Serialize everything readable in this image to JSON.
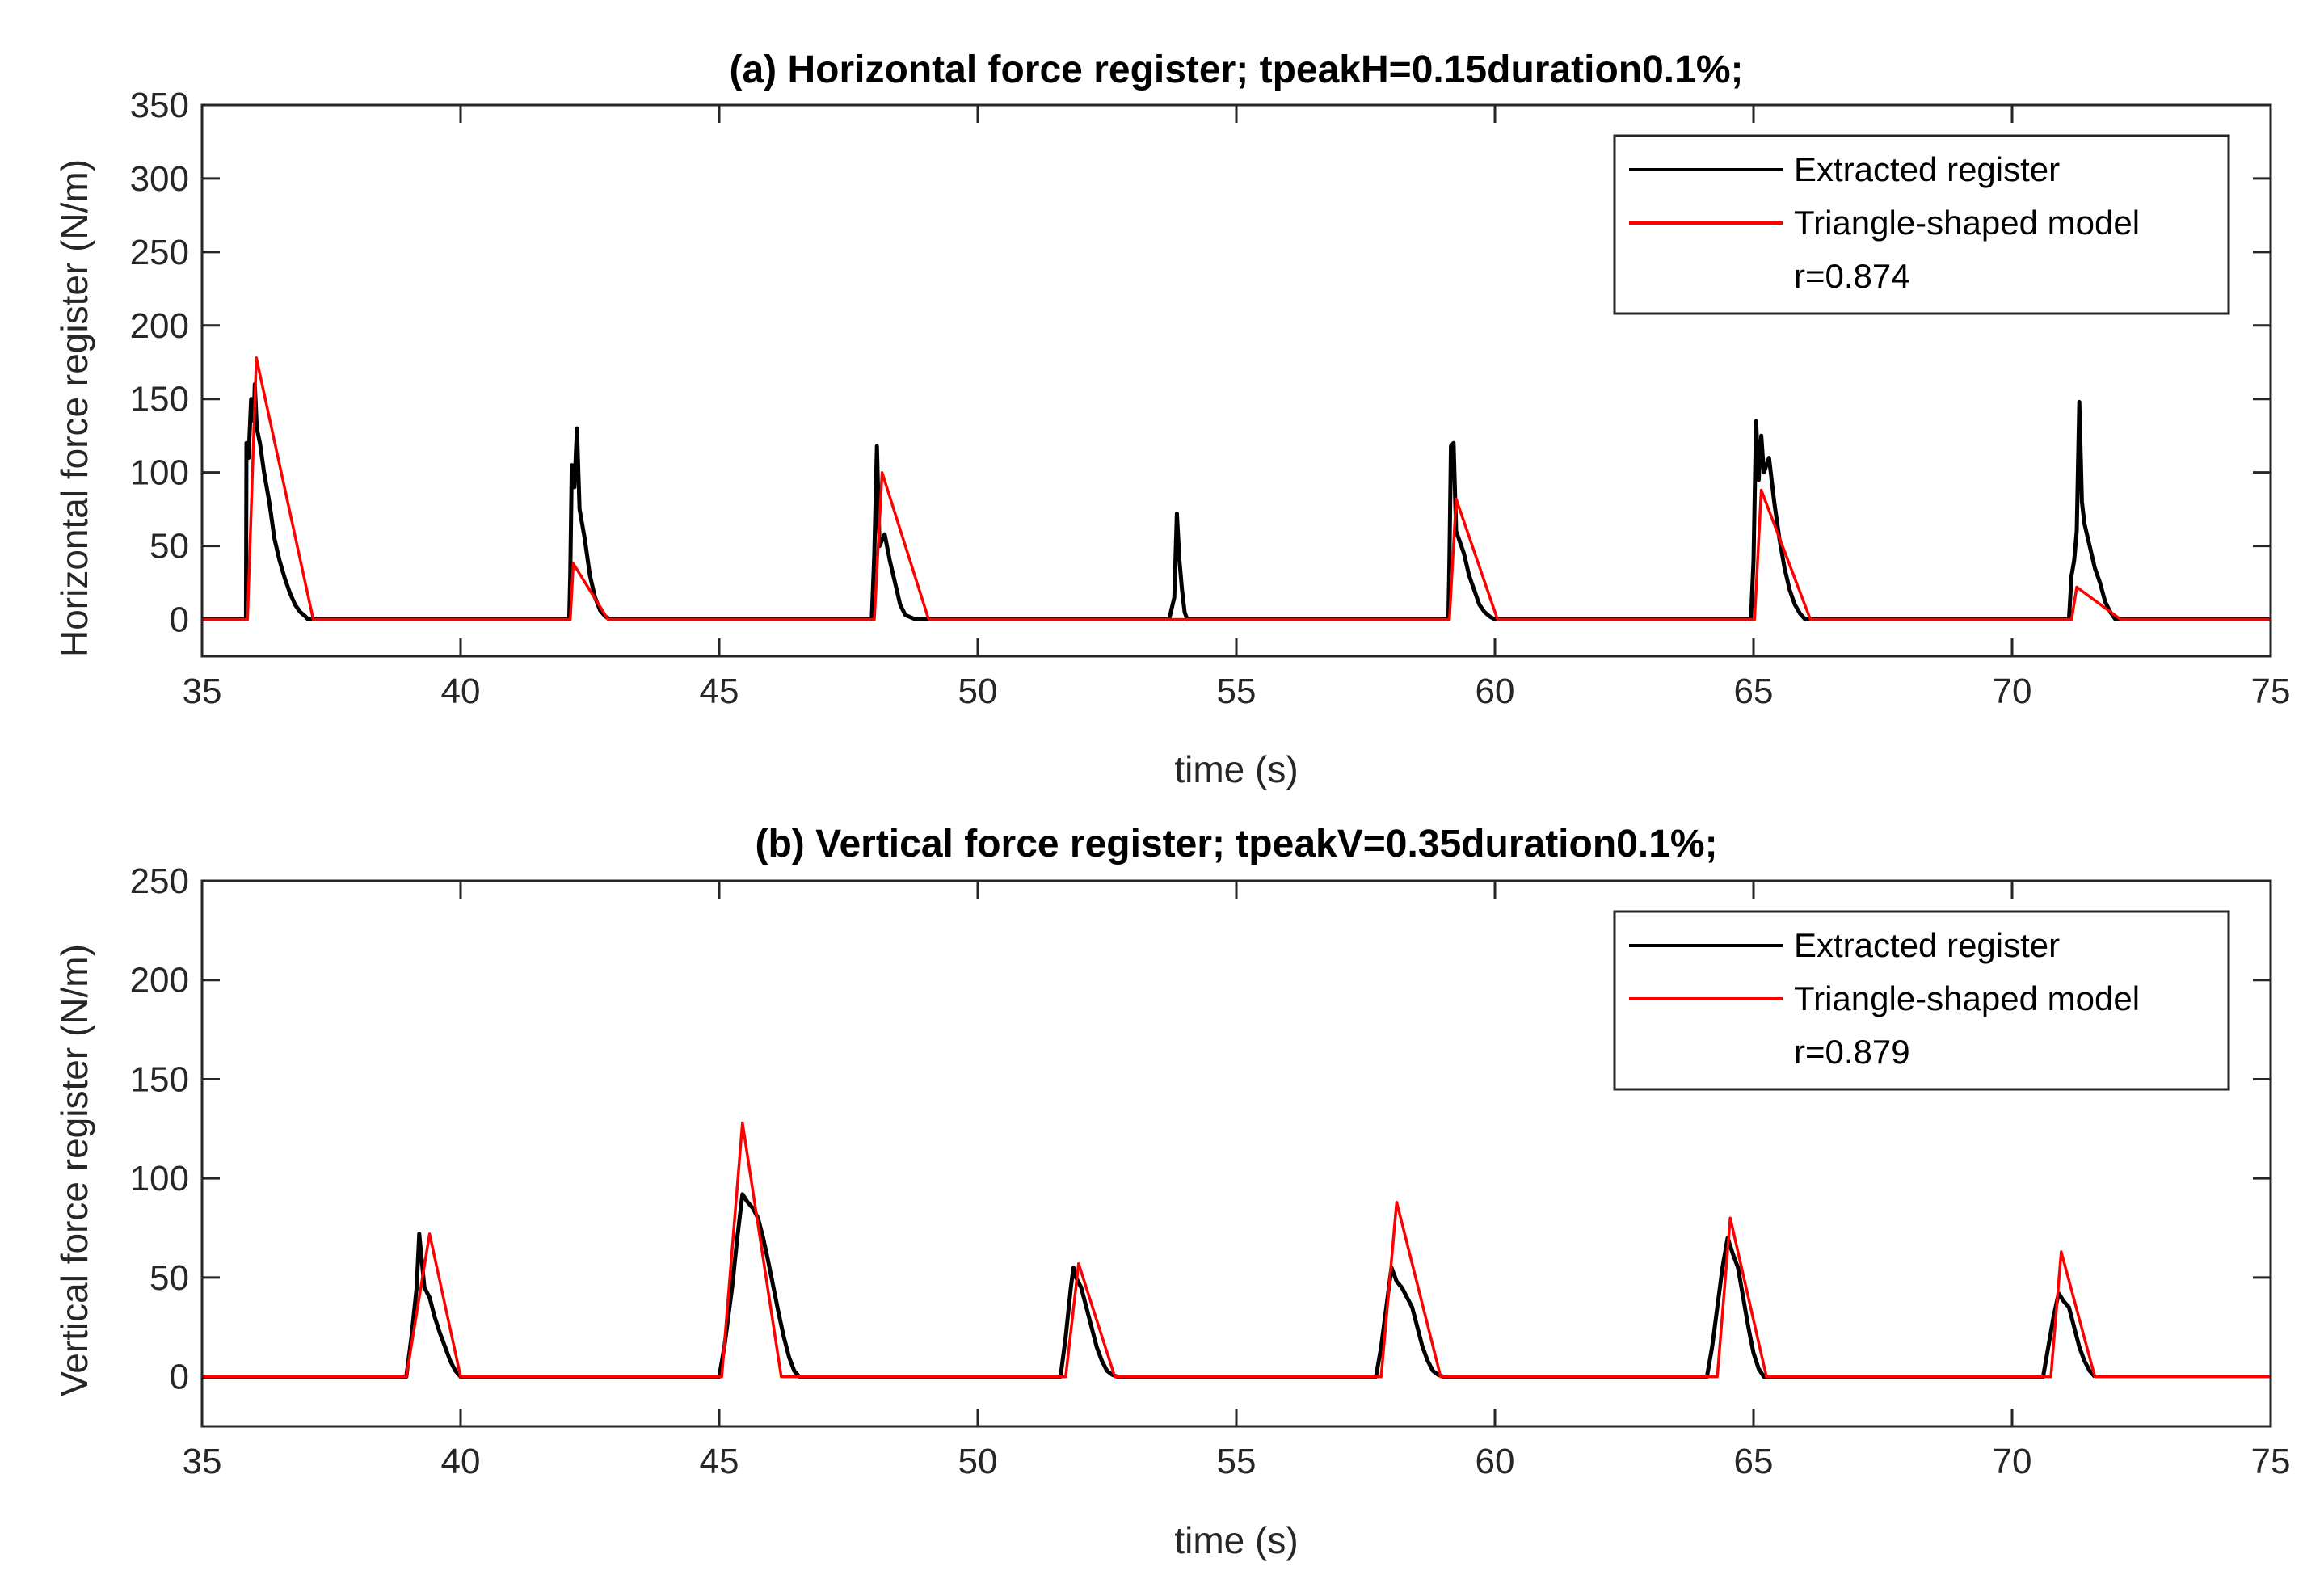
{
  "colors": {
    "extracted": "#000000",
    "model": "#ff0000",
    "axis": "#262626",
    "background": "#ffffff"
  },
  "chart_data": [
    {
      "type": "line",
      "id": "a",
      "title": "(a) Horizontal force register; tpeakH=0.15duration0.1%;",
      "xlabel": "time (s)",
      "ylabel": "Horizontal force register (N/m)",
      "xlim": [
        35,
        75
      ],
      "ylim": [
        -25,
        350
      ],
      "xticks": [
        35,
        40,
        45,
        50,
        55,
        60,
        65,
        70,
        75
      ],
      "yticks": [
        0,
        50,
        100,
        150,
        200,
        250,
        300,
        350
      ],
      "grid": false,
      "legend_position": "top-right",
      "legend": [
        "Extracted register",
        "Triangle-shaped model"
      ],
      "annotation": "r=0.874",
      "series": [
        {
          "name": "Extracted register",
          "x": [
            35.0,
            35.85,
            35.86,
            35.9,
            35.95,
            36.0,
            36.02,
            36.06,
            36.12,
            36.2,
            36.3,
            36.4,
            36.5,
            36.6,
            36.7,
            36.8,
            36.9,
            37.0,
            37.05,
            42.1,
            42.12,
            42.15,
            42.2,
            42.25,
            42.3,
            42.4,
            42.5,
            42.6,
            42.7,
            42.8,
            42.9,
            47.95,
            48.0,
            48.05,
            48.1,
            48.2,
            48.3,
            48.4,
            48.5,
            48.6,
            48.8,
            53.7,
            53.8,
            53.85,
            53.9,
            53.95,
            54.0,
            54.05,
            59.1,
            59.12,
            59.15,
            59.2,
            59.25,
            59.3,
            59.4,
            59.5,
            59.6,
            59.7,
            59.8,
            59.9,
            60.0,
            64.95,
            65.0,
            65.05,
            65.1,
            65.15,
            65.2,
            65.3,
            65.4,
            65.5,
            65.6,
            65.7,
            65.8,
            65.9,
            66.0,
            71.1,
            71.15,
            71.2,
            71.25,
            71.3,
            71.35,
            71.4,
            71.5,
            71.6,
            71.7,
            71.8,
            71.9,
            72.0,
            75.0
          ],
          "y": [
            0,
            0,
            120,
            110,
            150,
            135,
            160,
            130,
            120,
            100,
            80,
            55,
            40,
            28,
            18,
            10,
            5,
            2,
            0,
            0,
            30,
            105,
            90,
            130,
            75,
            55,
            30,
            15,
            6,
            2,
            0,
            0,
            45,
            118,
            50,
            58,
            40,
            25,
            10,
            3,
            0,
            0,
            15,
            72,
            40,
            20,
            5,
            0,
            0,
            40,
            118,
            120,
            60,
            55,
            45,
            30,
            20,
            10,
            5,
            2,
            0,
            0,
            40,
            135,
            95,
            125,
            100,
            110,
            80,
            55,
            35,
            20,
            10,
            4,
            0,
            0,
            30,
            40,
            60,
            148,
            80,
            65,
            50,
            35,
            25,
            12,
            5,
            0,
            0
          ]
        },
        {
          "name": "Triangle-shaped model",
          "x": [
            35.0,
            35.88,
            36.05,
            37.15,
            42.12,
            42.18,
            42.85,
            48.0,
            48.15,
            49.05,
            59.12,
            59.25,
            60.05,
            65.02,
            65.15,
            66.1,
            71.15,
            71.25,
            72.1,
            75.0
          ],
          "y": [
            0,
            0,
            178,
            0,
            0,
            38,
            0,
            0,
            100,
            0,
            0,
            82,
            0,
            0,
            88,
            0,
            0,
            22,
            0,
            0
          ]
        }
      ]
    },
    {
      "type": "line",
      "id": "b",
      "title": "(b) Vertical force register; tpeakV=0.35duration0.1%;",
      "xlabel": "time (s)",
      "ylabel": "Vertical force register (N/m)",
      "xlim": [
        35,
        75
      ],
      "ylim": [
        -25,
        250
      ],
      "xticks": [
        35,
        40,
        45,
        50,
        55,
        60,
        65,
        70,
        75
      ],
      "yticks": [
        0,
        50,
        100,
        150,
        200,
        250
      ],
      "grid": false,
      "legend_position": "top-right",
      "legend": [
        "Extracted register",
        "Triangle-shaped model"
      ],
      "annotation": "r=0.879",
      "series": [
        {
          "name": "Extracted register",
          "x": [
            35.0,
            38.95,
            39.05,
            39.15,
            39.2,
            39.3,
            39.4,
            39.5,
            39.6,
            39.7,
            39.8,
            39.9,
            40.0,
            45.0,
            45.1,
            45.25,
            45.35,
            45.45,
            45.55,
            45.65,
            45.75,
            45.85,
            45.95,
            46.05,
            46.15,
            46.25,
            46.35,
            46.45,
            46.55,
            51.6,
            51.7,
            51.8,
            51.85,
            51.9,
            52.0,
            52.1,
            52.2,
            52.3,
            52.4,
            52.5,
            52.6,
            52.7,
            57.7,
            57.8,
            57.9,
            58.0,
            58.1,
            58.2,
            58.3,
            58.4,
            58.5,
            58.6,
            58.7,
            58.8,
            58.9,
            59.0,
            64.1,
            64.2,
            64.3,
            64.4,
            64.5,
            64.6,
            64.7,
            64.8,
            64.9,
            65.0,
            65.1,
            65.2,
            70.6,
            70.7,
            70.8,
            70.9,
            71.0,
            71.1,
            71.2,
            71.3,
            71.4,
            71.5,
            71.6
          ],
          "y": [
            0,
            0,
            20,
            45,
            72,
            45,
            40,
            30,
            22,
            15,
            8,
            3,
            0,
            0,
            15,
            45,
            70,
            92,
            88,
            85,
            80,
            70,
            58,
            45,
            32,
            20,
            10,
            3,
            0,
            0,
            20,
            45,
            55,
            50,
            45,
            35,
            25,
            15,
            8,
            3,
            1,
            0,
            0,
            15,
            35,
            55,
            48,
            45,
            40,
            35,
            25,
            15,
            8,
            3,
            1,
            0,
            0,
            15,
            35,
            55,
            70,
            62,
            55,
            40,
            25,
            12,
            4,
            0,
            0,
            15,
            30,
            42,
            38,
            35,
            25,
            15,
            8,
            3,
            0
          ]
        },
        {
          "name": "Triangle-shaped model",
          "x": [
            35.0,
            38.95,
            39.4,
            40.0,
            45.05,
            45.45,
            46.2,
            51.7,
            51.95,
            52.65,
            57.8,
            58.1,
            58.95,
            64.3,
            64.55,
            65.25,
            70.75,
            70.95,
            71.6,
            75.0
          ],
          "y": [
            0,
            0,
            72,
            0,
            0,
            128,
            0,
            0,
            57,
            0,
            0,
            88,
            0,
            0,
            80,
            0,
            0,
            63,
            0,
            0
          ]
        }
      ]
    }
  ]
}
